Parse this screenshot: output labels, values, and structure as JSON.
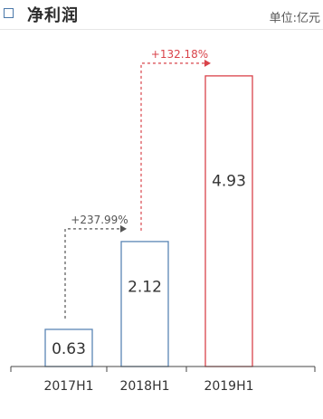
{
  "header": {
    "title": "净利润",
    "unit": "单位:亿元"
  },
  "colors": {
    "blue": "#5b86b5",
    "red": "#d9434a",
    "dash": "#555555",
    "axis": "#444444"
  },
  "chart_data": {
    "type": "bar",
    "title": "净利润",
    "unit": "单位:亿元",
    "categories": [
      "2017H1",
      "2018H1",
      "2019H1"
    ],
    "values": [
      0.63,
      2.12,
      4.93
    ],
    "value_labels": [
      "0.63",
      "2.12",
      "4.93"
    ],
    "bar_colors": [
      "blue",
      "blue",
      "red"
    ],
    "ylim": [
      0,
      5.45
    ],
    "grid": false,
    "growth_annotations": [
      {
        "from": 0,
        "to": 1,
        "label": "+237.99%",
        "color": "dash"
      },
      {
        "from": 1,
        "to": 2,
        "label": "+132.18%",
        "color": "red"
      }
    ]
  }
}
